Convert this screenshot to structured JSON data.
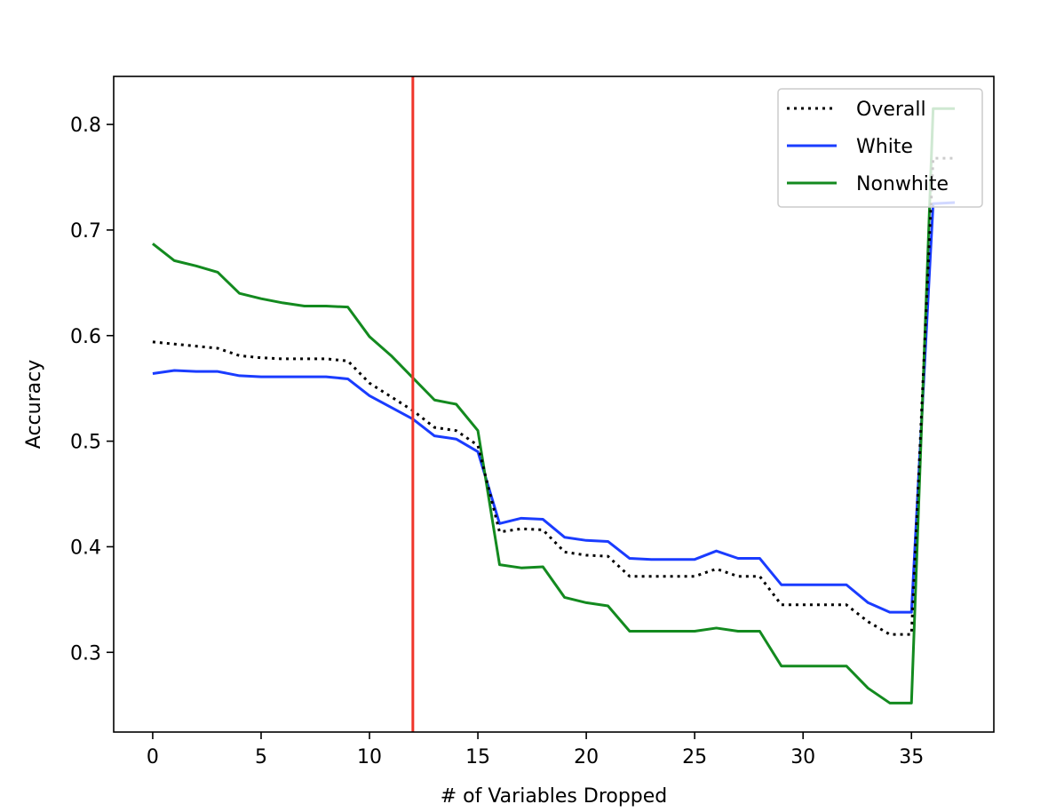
{
  "chart_data": {
    "type": "line",
    "title": "",
    "xlabel": "# of Variables Dropped",
    "ylabel": "Accuracy",
    "xlim": [
      -1.8,
      38.8
    ],
    "ylim": [
      0.2245,
      0.8455
    ],
    "xticks": [
      0,
      5,
      10,
      15,
      20,
      25,
      30,
      35
    ],
    "yticks": [
      0.3,
      0.4,
      0.5,
      0.6,
      0.7,
      0.8
    ],
    "ytick_labels": [
      "0.3",
      "0.4",
      "0.5",
      "0.6",
      "0.7",
      "0.8"
    ],
    "grid": false,
    "legend_position": "upper right",
    "x": [
      0,
      1,
      2,
      3,
      4,
      5,
      6,
      7,
      8,
      9,
      10,
      11,
      12,
      13,
      14,
      15,
      16,
      17,
      18,
      19,
      20,
      21,
      22,
      23,
      24,
      25,
      26,
      27,
      28,
      29,
      30,
      31,
      32,
      33,
      34,
      35,
      36,
      37
    ],
    "series": [
      {
        "name": "Overall",
        "color": "#000000",
        "style": "dotted",
        "values": [
          0.594,
          0.592,
          0.59,
          0.588,
          0.581,
          0.579,
          0.578,
          0.578,
          0.578,
          0.576,
          0.555,
          0.542,
          0.529,
          0.513,
          0.51,
          0.496,
          0.414,
          0.417,
          0.416,
          0.395,
          0.392,
          0.391,
          0.372,
          0.372,
          0.372,
          0.372,
          0.379,
          0.372,
          0.372,
          0.345,
          0.345,
          0.345,
          0.345,
          0.329,
          0.317,
          0.317,
          0.768,
          0.768
        ]
      },
      {
        "name": "White",
        "color": "#1a3cff",
        "style": "solid",
        "values": [
          0.564,
          0.567,
          0.566,
          0.566,
          0.562,
          0.561,
          0.561,
          0.561,
          0.561,
          0.559,
          0.543,
          0.532,
          0.521,
          0.505,
          0.502,
          0.49,
          0.422,
          0.427,
          0.426,
          0.409,
          0.406,
          0.405,
          0.389,
          0.388,
          0.388,
          0.388,
          0.396,
          0.389,
          0.389,
          0.364,
          0.364,
          0.364,
          0.364,
          0.347,
          0.338,
          0.338,
          0.725,
          0.726
        ]
      },
      {
        "name": "Nonwhite",
        "color": "#138a1f",
        "style": "solid",
        "values": [
          0.687,
          0.671,
          0.666,
          0.66,
          0.64,
          0.635,
          0.631,
          0.628,
          0.628,
          0.627,
          0.599,
          0.581,
          0.56,
          0.539,
          0.535,
          0.51,
          0.383,
          0.38,
          0.381,
          0.352,
          0.347,
          0.344,
          0.32,
          0.32,
          0.32,
          0.32,
          0.323,
          0.32,
          0.32,
          0.287,
          0.287,
          0.287,
          0.287,
          0.266,
          0.252,
          0.252,
          0.815,
          0.815
        ]
      }
    ],
    "vline": {
      "x": 12,
      "color": "#f0352a"
    }
  }
}
